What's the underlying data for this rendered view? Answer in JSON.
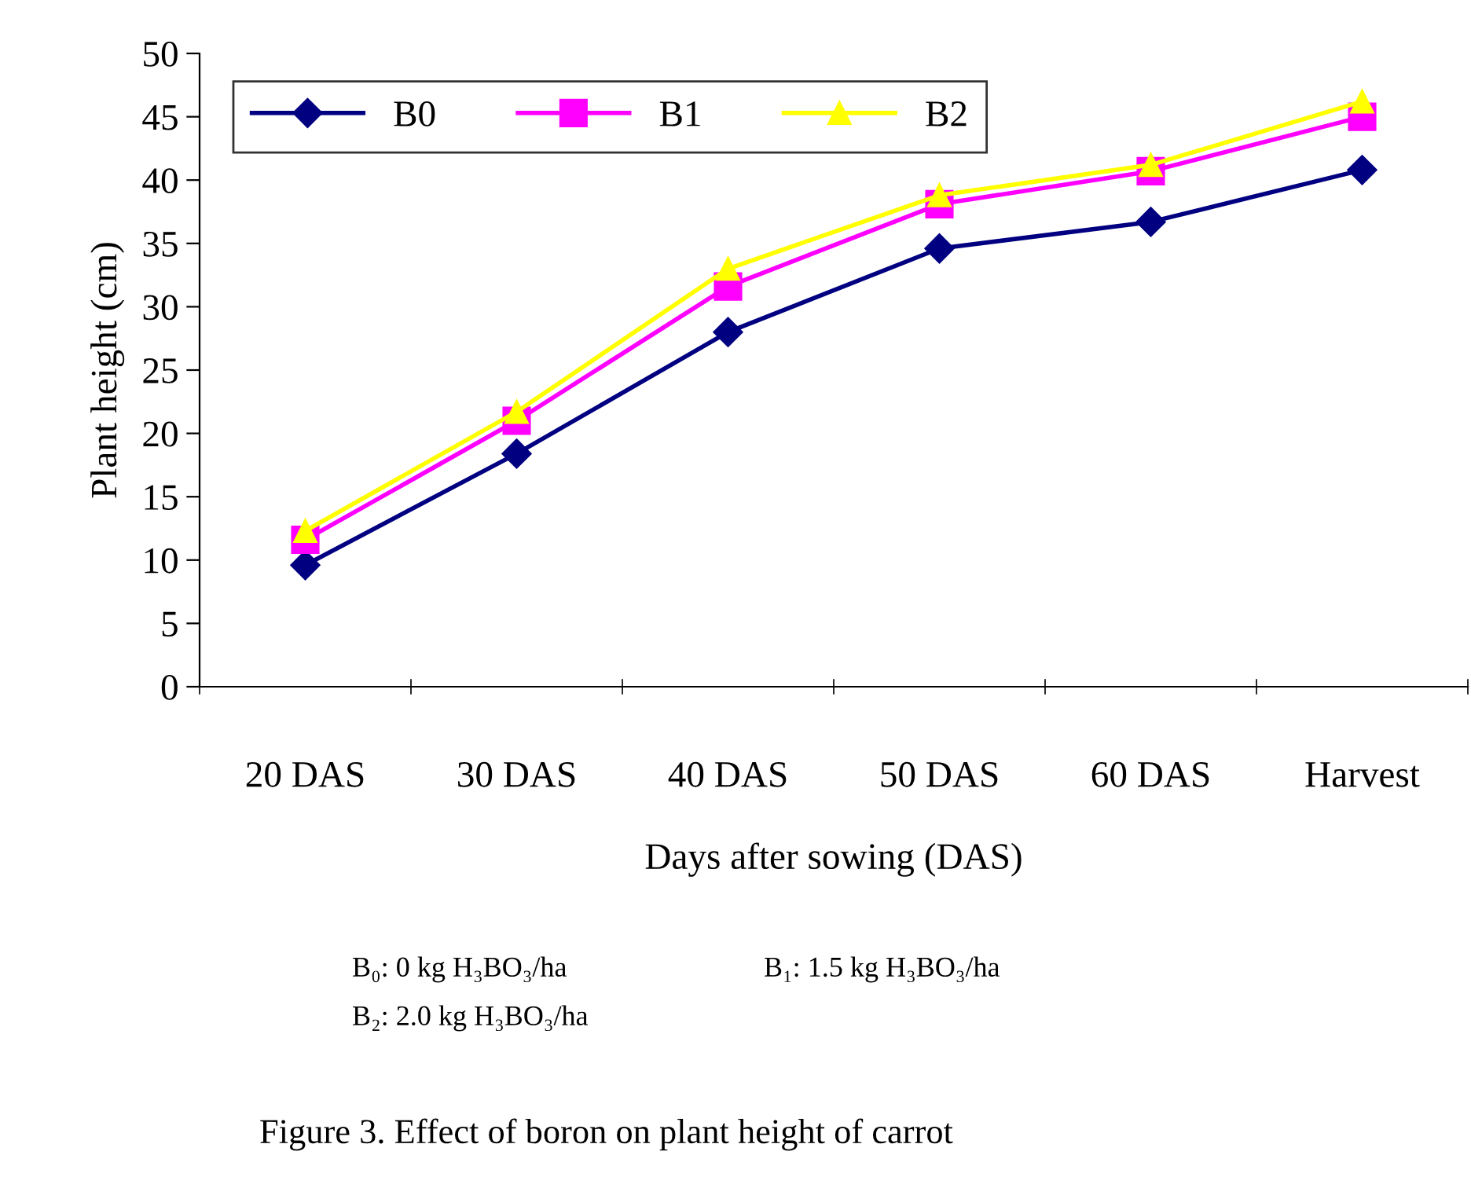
{
  "chart_data": {
    "type": "line",
    "xlabel": "Days after sowing (DAS)",
    "ylabel": "Plant height (cm)",
    "categories": [
      "20 DAS",
      "30 DAS",
      "40 DAS",
      "50 DAS",
      "60 DAS",
      "Harvest"
    ],
    "series": [
      {
        "name": "B0",
        "color": "#000080",
        "marker": "diamond",
        "values": [
          9.6,
          18.4,
          28.0,
          34.6,
          36.7,
          40.8
        ]
      },
      {
        "name": "B1",
        "color": "#ff00ff",
        "marker": "square",
        "values": [
          11.6,
          21.0,
          31.6,
          38.1,
          40.7,
          45.0
        ]
      },
      {
        "name": "B2",
        "color": "#ffff00",
        "marker": "triangle",
        "values": [
          12.3,
          21.7,
          33.0,
          38.8,
          41.2,
          46.2
        ]
      }
    ],
    "ylim": [
      0,
      50
    ],
    "yticks": [
      0,
      5,
      10,
      15,
      20,
      25,
      30,
      35,
      40,
      45,
      50
    ],
    "grid": false,
    "legend": "top left",
    "line_style": "solid",
    "annotations": [
      "B₀: 0 kg H₃BO₃/ha",
      "B₁: 1.5 kg H₃BO₃/ha",
      "B₂: 2.0 kg H₃BO₃/ha",
      "Figure 3. Effect of boron on plant height of carrot"
    ]
  }
}
